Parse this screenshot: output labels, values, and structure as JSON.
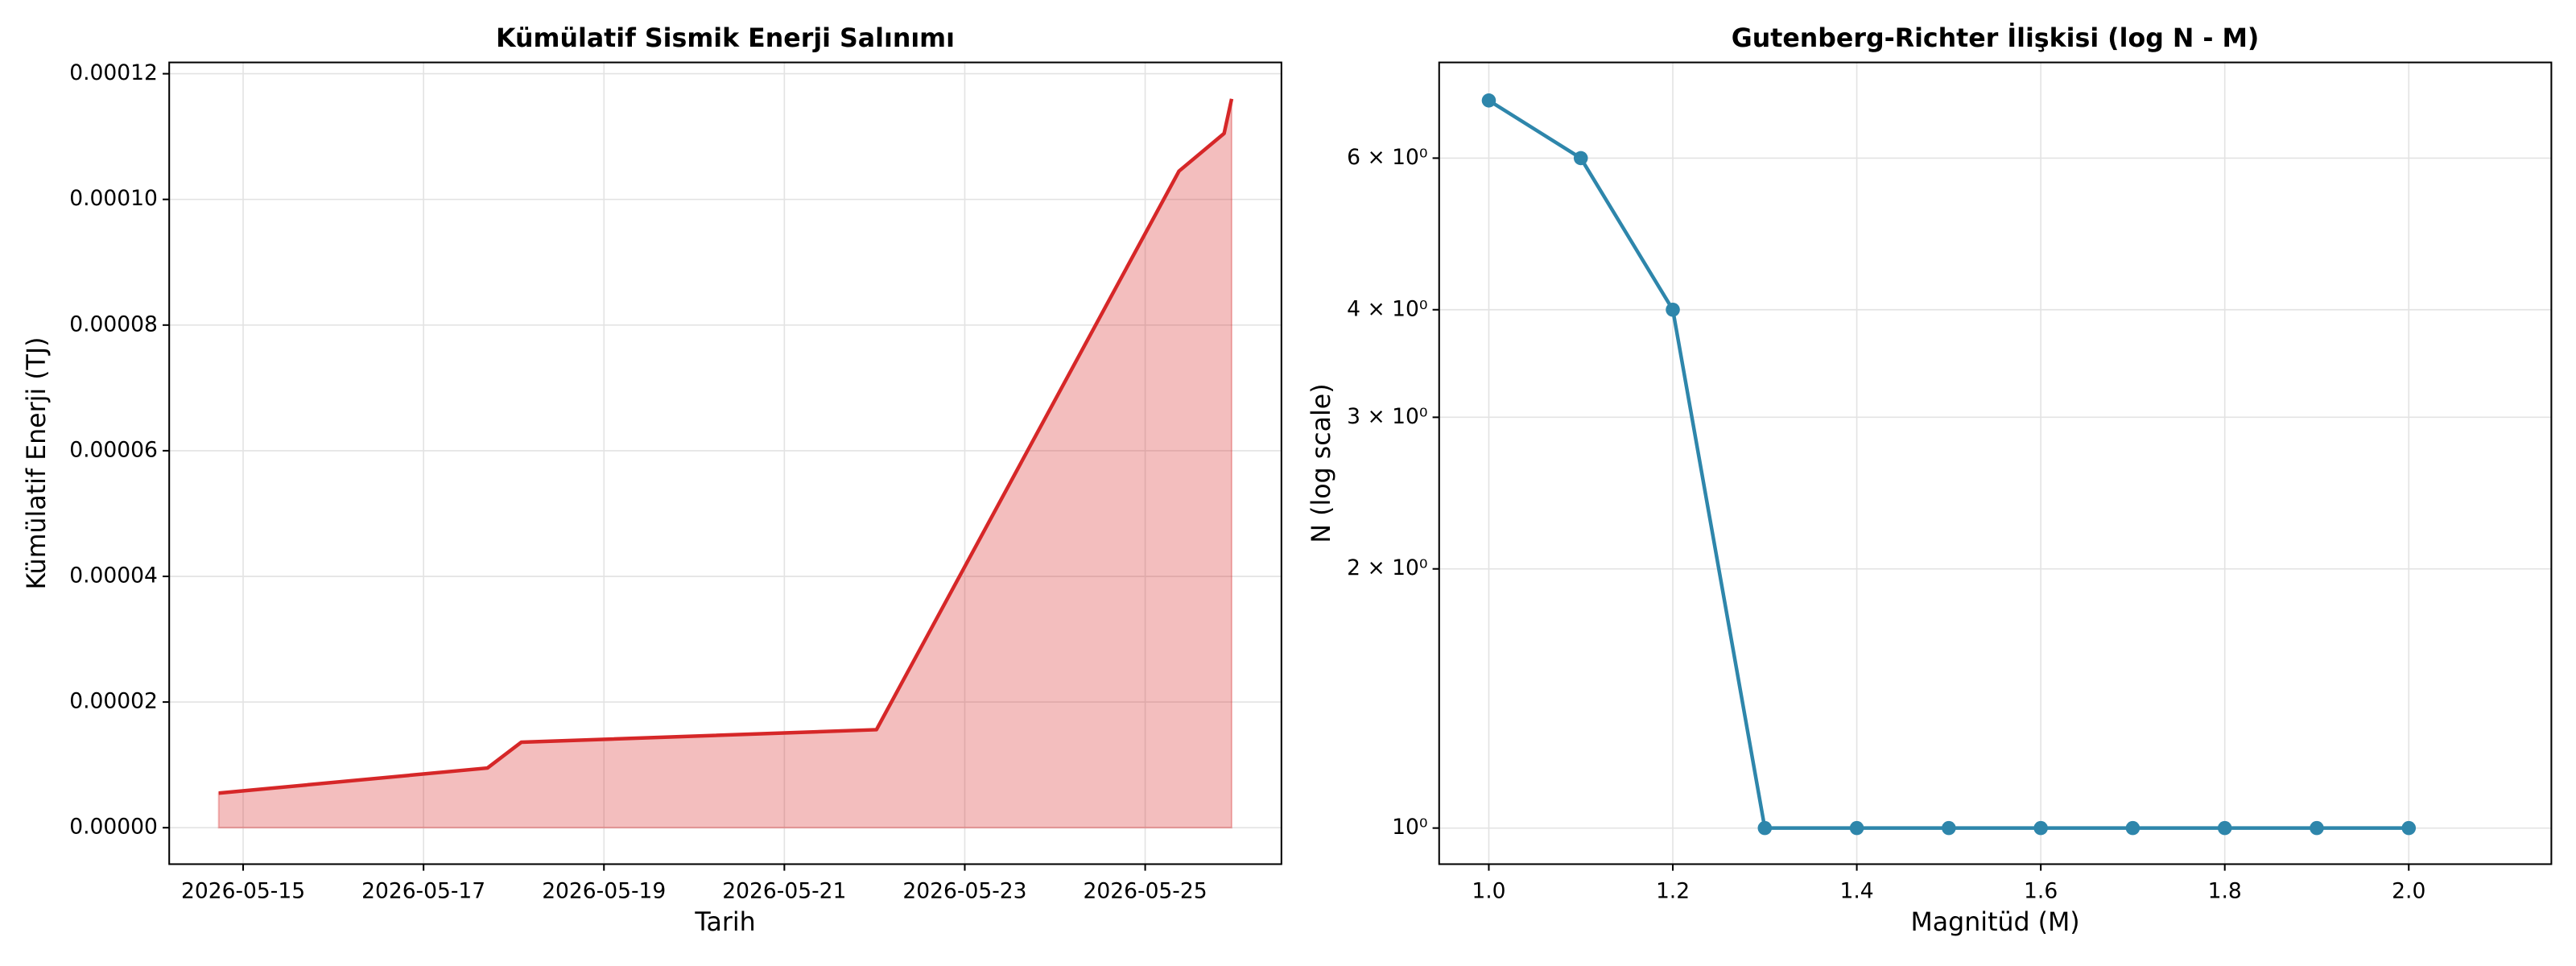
{
  "chart_data": [
    {
      "type": "area",
      "title": "Kümülatif Sismik Enerji Salınımı",
      "xlabel": "Tarih",
      "ylabel": "Kümülatif Enerji (TJ)",
      "x": [
        "2026-05-14T17:30",
        "2026-05-17T17:00",
        "2026-05-18T02:00",
        "2026-05-22T00:30",
        "2026-05-25T09:00",
        "2026-05-25T21:00",
        "2026-05-25T23:00"
      ],
      "values": [
        5.5e-06,
        9.5e-06,
        1.36e-05,
        1.56e-05,
        0.0001045,
        0.0001105,
        0.000116
      ],
      "color": "#d62728",
      "xlim": [
        "2026-05-14T04:20",
        "2026-05-26T12:15"
      ],
      "xticks": [
        "2026-05-15",
        "2026-05-17",
        "2026-05-19",
        "2026-05-21",
        "2026-05-23",
        "2026-05-25"
      ],
      "ylim": [
        -5.8e-06,
        0.0001218
      ],
      "yticks": [
        {
          "value": 0,
          "label": "0.00000"
        },
        {
          "value": 2e-05,
          "label": "0.00002"
        },
        {
          "value": 4e-05,
          "label": "0.00004"
        },
        {
          "value": 6e-05,
          "label": "0.00006"
        },
        {
          "value": 8e-05,
          "label": "0.00008"
        },
        {
          "value": 0.0001,
          "label": "0.00010"
        },
        {
          "value": 0.00012,
          "label": "0.00012"
        }
      ],
      "grid": true
    },
    {
      "type": "line",
      "title": "Gutenberg-Richter İlişkisi (log N - M)",
      "xlabel": "Magnitüd (M)",
      "ylabel": "N (log scale)",
      "x": [
        1.0,
        1.1,
        1.2,
        1.3,
        1.4,
        1.5,
        1.6,
        1.7,
        1.8,
        1.9,
        2.0
      ],
      "values": [
        7,
        6,
        4,
        1,
        1,
        1,
        1,
        1,
        1,
        1,
        1
      ],
      "color": "#2e86ab",
      "xlim": [
        0.946,
        2.155
      ],
      "xticks": [
        {
          "value": 1,
          "label": "1.0"
        },
        1.2,
        1.4,
        1.6,
        1.8,
        {
          "value": 2,
          "label": "2.0"
        }
      ],
      "ylim": [
        0.908,
        7.75
      ],
      "yscale": "log",
      "yticks": [
        {
          "value": 1,
          "label": "10⁰"
        },
        {
          "value": 2,
          "label": "2 × 10⁰"
        },
        {
          "value": 3,
          "label": "3 × 10⁰"
        },
        {
          "value": 4,
          "label": "4 × 10⁰"
        },
        {
          "value": 6,
          "label": "6 × 10⁰"
        }
      ],
      "grid": true
    }
  ]
}
